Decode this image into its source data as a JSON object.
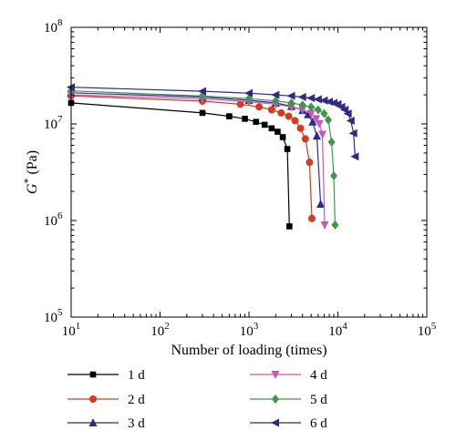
{
  "chart_data": {
    "type": "line",
    "x_scale": "log",
    "y_scale": "log",
    "xlabel": "Number of loading (times)",
    "ylabel_base": "G",
    "ylabel_sup": "*",
    "ylabel_unit": " (Pa)",
    "xlim": [
      10,
      100000
    ],
    "ylim": [
      100000,
      100000000
    ],
    "x_ticks": [
      {
        "value": 10,
        "base": "10",
        "exp": "1"
      },
      {
        "value": 100,
        "base": "10",
        "exp": "2"
      },
      {
        "value": 1000,
        "base": "10",
        "exp": "3"
      },
      {
        "value": 10000,
        "base": "10",
        "exp": "4"
      },
      {
        "value": 100000,
        "base": "10",
        "exp": "5"
      }
    ],
    "y_ticks": [
      {
        "value": 100000,
        "base": "10",
        "exp": "5"
      },
      {
        "value": 1000000,
        "base": "10",
        "exp": "6"
      },
      {
        "value": 10000000,
        "base": "10",
        "exp": "7"
      },
      {
        "value": 100000000,
        "base": "10",
        "exp": "8"
      }
    ],
    "grid": false,
    "legend_placement": "bottom",
    "series": [
      {
        "name": "1 d",
        "color": "#000000",
        "marker": "square",
        "x": [
          10,
          300,
          600,
          900,
          1200,
          1500,
          1800,
          2100,
          2400,
          2700,
          2850
        ],
        "y": [
          16500000,
          13000000,
          12000000,
          11300000,
          10500000,
          9800000,
          9000000,
          8300000,
          7300000,
          5500000,
          870000
        ]
      },
      {
        "name": "2 d",
        "color": "#d63a1f",
        "marker": "circle",
        "x": [
          10,
          300,
          800,
          1300,
          1800,
          2300,
          2800,
          3300,
          3800,
          4300,
          4800,
          5100
        ],
        "y": [
          19500000,
          17200000,
          16000000,
          15000000,
          14000000,
          13000000,
          12000000,
          10800000,
          9000000,
          7000000,
          4000000,
          1050000
        ]
      },
      {
        "name": "3 d",
        "color": "#2e2a8a",
        "marker": "triangle-up",
        "x": [
          10,
          300,
          1000,
          2000,
          3000,
          4000,
          4600,
          5200,
          5800,
          6400
        ],
        "y": [
          21000000,
          19000000,
          17600000,
          16500000,
          15200000,
          13800000,
          12500000,
          10500000,
          7500000,
          1480000
        ]
      },
      {
        "name": "4 d",
        "color": "#c857b8",
        "marker": "triangle-down",
        "x": [
          10,
          300,
          1000,
          2000,
          3000,
          4000,
          5000,
          5700,
          6200,
          6700,
          7100
        ],
        "y": [
          20000000,
          18200000,
          17000000,
          16000000,
          15000000,
          14000000,
          12800000,
          11300000,
          10000000,
          7800000,
          900000
        ]
      },
      {
        "name": "5 d",
        "color": "#3a9a4a",
        "marker": "diamond",
        "x": [
          10,
          300,
          1000,
          2000,
          3000,
          4000,
          5000,
          6000,
          7000,
          7800,
          8500,
          9000,
          9300
        ],
        "y": [
          22000000,
          19500000,
          18300000,
          17300000,
          16500000,
          15700000,
          15000000,
          14000000,
          12800000,
          11000000,
          6500000,
          2900000,
          900000
        ]
      },
      {
        "name": "6 d",
        "color": "#2e2a8a",
        "marker": "triangle-left",
        "x": [
          10,
          300,
          1000,
          2000,
          3000,
          4000,
          5000,
          6000,
          7000,
          8000,
          9000,
          10000,
          11000,
          12000,
          13000,
          14000,
          15000,
          15600
        ],
        "y": [
          24000000,
          21800000,
          20800000,
          20000000,
          19500000,
          19000000,
          18500000,
          18000000,
          17500000,
          17000000,
          16500000,
          16000000,
          15000000,
          14000000,
          12800000,
          10800000,
          8000000,
          4600000
        ]
      }
    ]
  }
}
